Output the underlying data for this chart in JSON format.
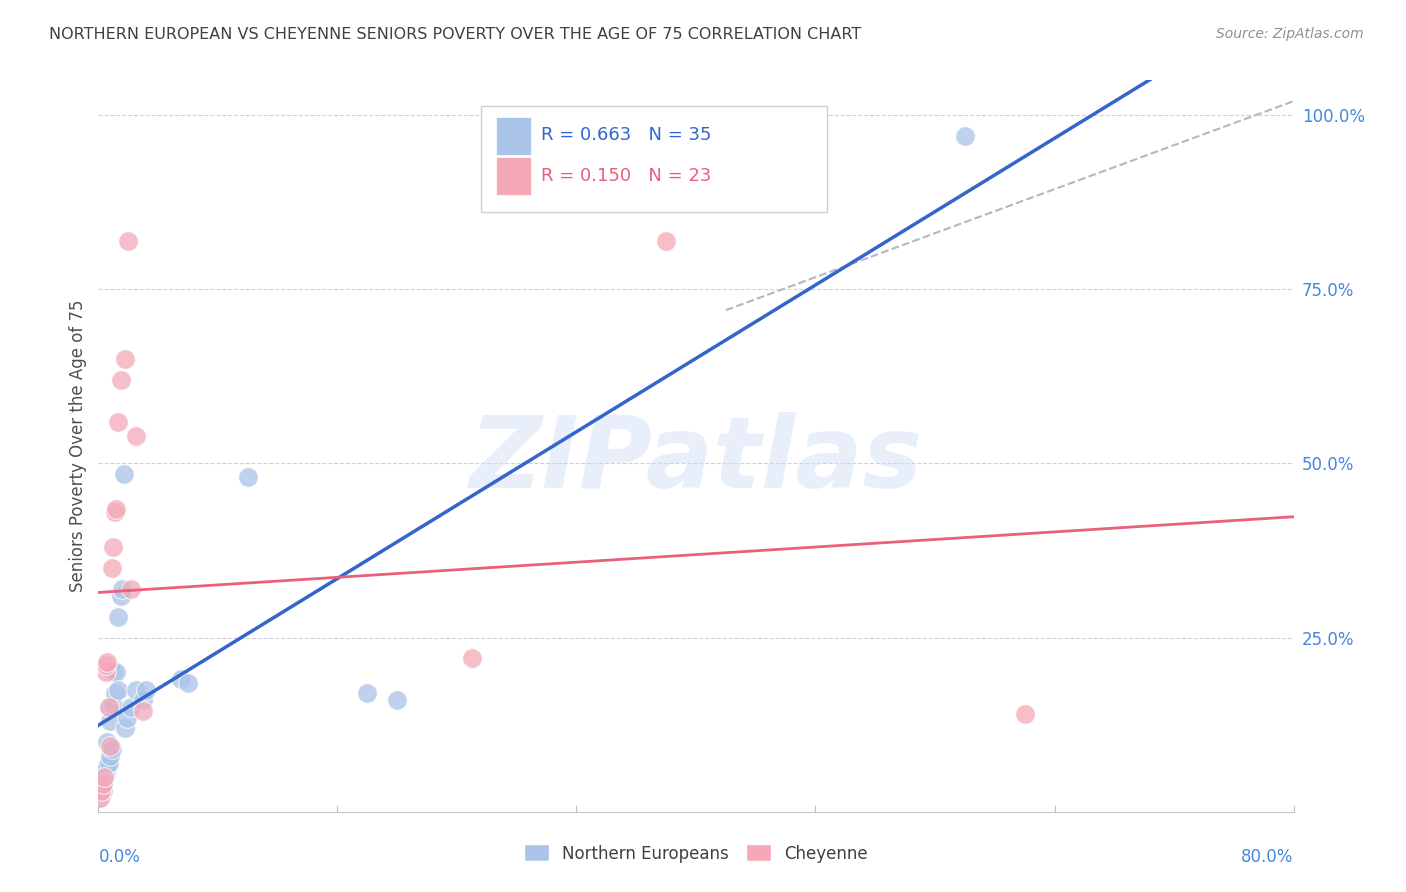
{
  "title": "NORTHERN EUROPEAN VS CHEYENNE SENIORS POVERTY OVER THE AGE OF 75 CORRELATION CHART",
  "source": "Source: ZipAtlas.com",
  "ylabel": "Seniors Poverty Over the Age of 75",
  "x_label_bottom_left": "0.0%",
  "x_label_bottom_right": "80.0%",
  "xlim": [
    0.0,
    0.8
  ],
  "ylim": [
    0.0,
    1.05
  ],
  "watermark": "ZIPatlas",
  "blue_scatter": [
    [
      0.001,
      0.02
    ],
    [
      0.002,
      0.025
    ],
    [
      0.003,
      0.03
    ],
    [
      0.003,
      0.045
    ],
    [
      0.004,
      0.05
    ],
    [
      0.005,
      0.055
    ],
    [
      0.005,
      0.06
    ],
    [
      0.006,
      0.065
    ],
    [
      0.006,
      0.1
    ],
    [
      0.007,
      0.07
    ],
    [
      0.007,
      0.15
    ],
    [
      0.008,
      0.08
    ],
    [
      0.008,
      0.13
    ],
    [
      0.009,
      0.09
    ],
    [
      0.01,
      0.155
    ],
    [
      0.01,
      0.2
    ],
    [
      0.011,
      0.17
    ],
    [
      0.012,
      0.2
    ],
    [
      0.013,
      0.175
    ],
    [
      0.013,
      0.28
    ],
    [
      0.015,
      0.31
    ],
    [
      0.016,
      0.32
    ],
    [
      0.017,
      0.485
    ],
    [
      0.018,
      0.12
    ],
    [
      0.019,
      0.135
    ],
    [
      0.022,
      0.15
    ],
    [
      0.025,
      0.175
    ],
    [
      0.03,
      0.16
    ],
    [
      0.032,
      0.175
    ],
    [
      0.055,
      0.19
    ],
    [
      0.06,
      0.185
    ],
    [
      0.1,
      0.48
    ],
    [
      0.18,
      0.17
    ],
    [
      0.2,
      0.16
    ],
    [
      0.58,
      0.97
    ]
  ],
  "pink_scatter": [
    [
      0.001,
      0.02
    ],
    [
      0.002,
      0.03
    ],
    [
      0.003,
      0.04
    ],
    [
      0.004,
      0.05
    ],
    [
      0.005,
      0.2
    ],
    [
      0.005,
      0.21
    ],
    [
      0.006,
      0.215
    ],
    [
      0.007,
      0.15
    ],
    [
      0.008,
      0.095
    ],
    [
      0.009,
      0.35
    ],
    [
      0.01,
      0.38
    ],
    [
      0.011,
      0.43
    ],
    [
      0.012,
      0.435
    ],
    [
      0.013,
      0.56
    ],
    [
      0.015,
      0.62
    ],
    [
      0.018,
      0.65
    ],
    [
      0.02,
      0.82
    ],
    [
      0.022,
      0.32
    ],
    [
      0.025,
      0.54
    ],
    [
      0.03,
      0.145
    ],
    [
      0.25,
      0.22
    ],
    [
      0.62,
      0.14
    ],
    [
      0.38,
      0.82
    ]
  ],
  "blue_R": 0.663,
  "blue_N": 35,
  "pink_R": 0.15,
  "pink_N": 23,
  "blue_color": "#aac4e8",
  "pink_color": "#f4a8b8",
  "blue_line_color": "#3366cc",
  "pink_line_color": "#e8607a",
  "diagonal_color": "#b0b8c8",
  "legend_label_blue": "Northern Europeans",
  "legend_label_pink": "Cheyenne",
  "background_color": "#ffffff",
  "grid_color": "#d0d0e0",
  "title_color": "#404040",
  "source_color": "#909090",
  "axis_label_color": "#4488dd",
  "right_tick_color": "#4488dd"
}
